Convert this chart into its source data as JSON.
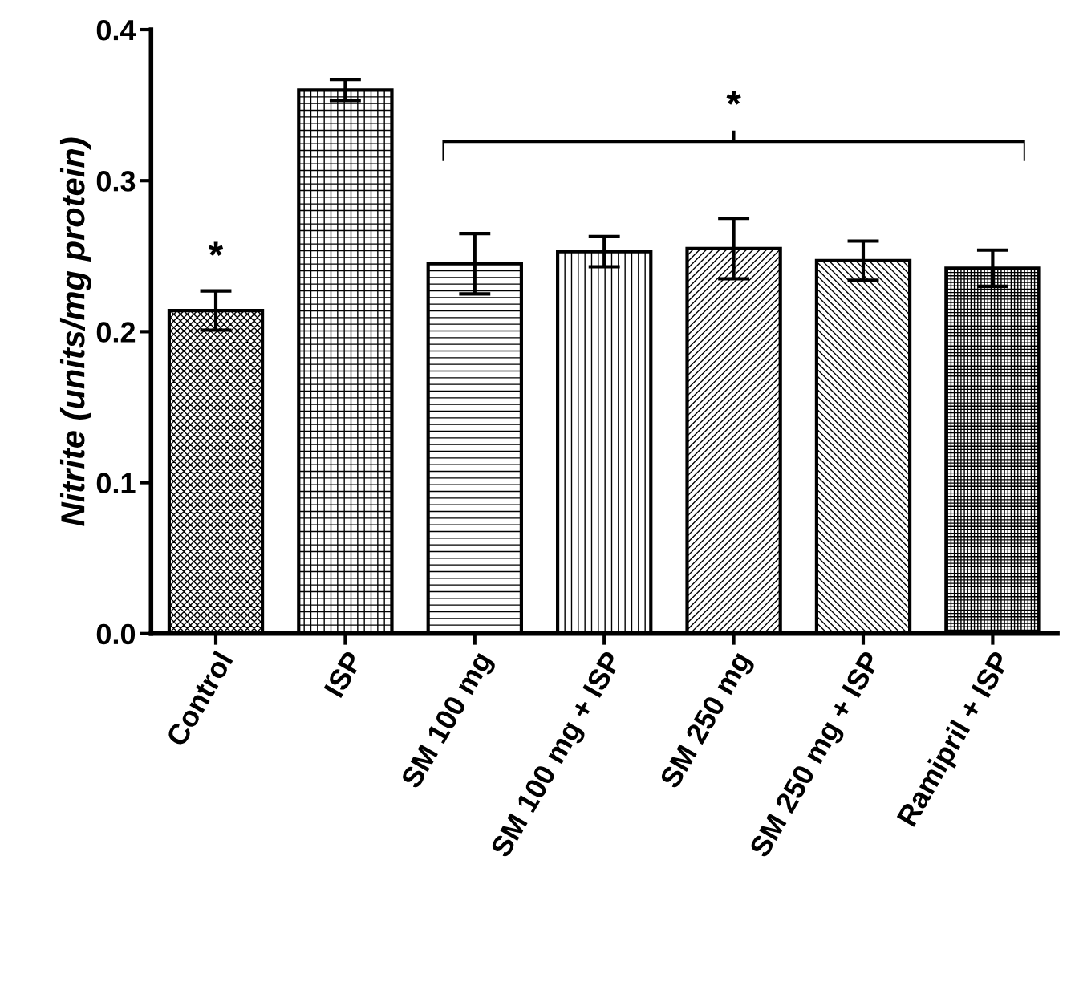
{
  "chart_data": {
    "type": "bar",
    "ylabel": "Nitrite (units/mg protein)",
    "categories": [
      "Control",
      "ISP",
      "SM 100 mg",
      "SM 100 mg + ISP",
      "SM 250 mg",
      "SM 250 mg + ISP",
      "Ramipril + ISP"
    ],
    "values": [
      0.214,
      0.36,
      0.245,
      0.253,
      0.255,
      0.247,
      0.242
    ],
    "errors": [
      0.013,
      0.007,
      0.02,
      0.01,
      0.02,
      0.013,
      0.012
    ],
    "color": "#000000",
    "ylim": [
      0,
      0.4
    ],
    "yticks": [
      {
        "value": 0,
        "label": "0.0"
      },
      {
        "value": 0.1,
        "label": "0.1"
      },
      {
        "value": 0.2,
        "label": "0.2"
      },
      {
        "value": 0.3,
        "label": "0.3"
      },
      {
        "value": 0.4,
        "label": "0.4"
      }
    ],
    "annotations": [
      "*",
      "*"
    ],
    "grid": false,
    "legend": false
  }
}
